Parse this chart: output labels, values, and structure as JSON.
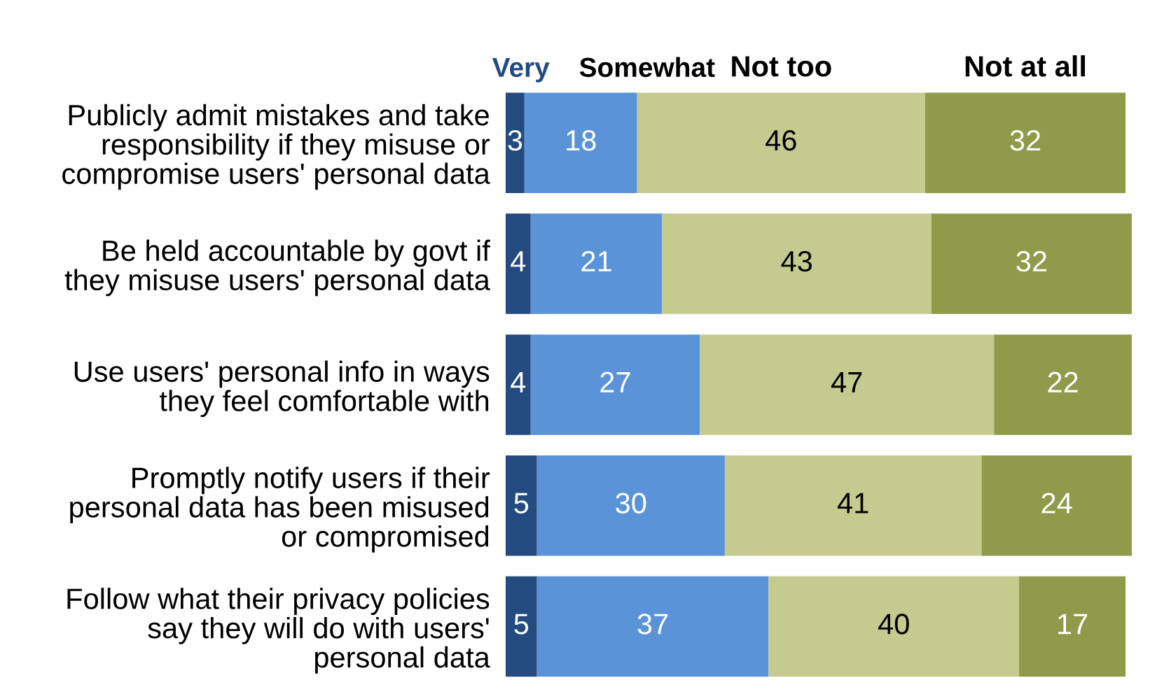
{
  "chart_data": {
    "type": "bar",
    "orientation": "horizontal",
    "stacked": true,
    "data_labels": true,
    "legend": false,
    "grid": false,
    "tick_labels": "y",
    "xlim": [
      0,
      100
    ],
    "categories": [
      "Publicly admit mistakes and take\nresponsibility if they misuse or\ncompromise users' personal data",
      "Be held accountable by govt if\nthey misuse users' personal data",
      "Use users' personal info in ways\nthey feel comfortable with",
      "Promptly notify users if their\npersonal data has been misused\nor compromised",
      "Follow what their privacy policies\nsay they will do with users'\npersonal data"
    ],
    "series": [
      {
        "name": "Very",
        "color": "#234b80",
        "values": [
          3,
          4,
          4,
          5,
          5
        ]
      },
      {
        "name": "Somewhat",
        "color": "#5a93d8",
        "values": [
          18,
          21,
          27,
          30,
          37
        ]
      },
      {
        "name": "Not too",
        "color": "#c5cb8f",
        "values": [
          46,
          43,
          47,
          41,
          40
        ]
      },
      {
        "name": "Not at all",
        "color": "#8f9b4b",
        "values": [
          32,
          32,
          22,
          24,
          17
        ]
      }
    ]
  }
}
